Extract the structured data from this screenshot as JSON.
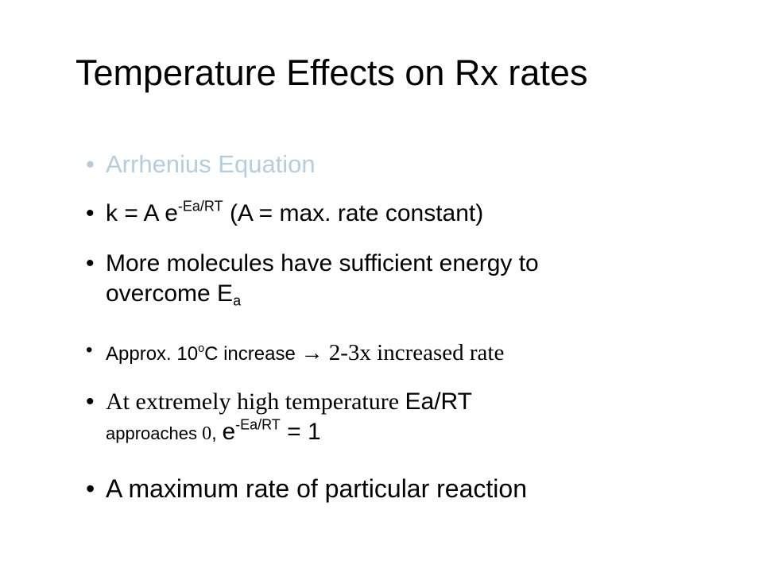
{
  "slide": {
    "title": "Temperature Effects on Rx rates",
    "bullets": [
      [
        "Arrhenius Equation"
      ],
      [
        "k = A e",
        "-Ea/RT",
        " (A = max. rate constant)"
      ],
      [
        "More molecules have sufficient energy to",
        "overcome E",
        "a"
      ],
      [
        "Approx. 10",
        "o",
        "C increase ",
        "→",
        " 2-3x increased rate"
      ],
      [
        "At extremely high temperature ",
        "Ea/RT",
        "approaches ",
        "0",
        ", ",
        "e",
        "-Ea/RT",
        " = 1"
      ],
      [
        "A maximum rate of particular reaction"
      ]
    ]
  }
}
